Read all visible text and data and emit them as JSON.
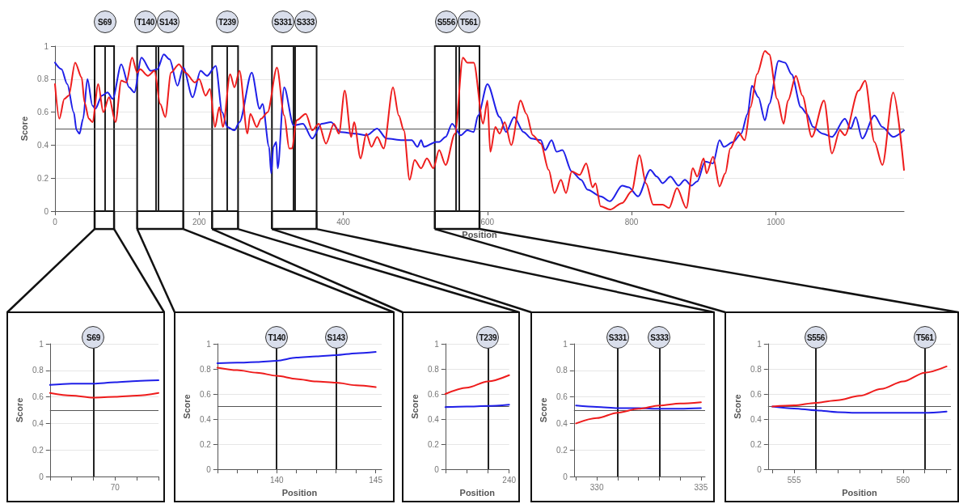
{
  "chart_data": [
    {
      "type": "line",
      "ylabel": "Score",
      "xlabel": "Position",
      "xlim": [
        0,
        1178
      ],
      "xticks": [
        0,
        200,
        400,
        600,
        800,
        1000
      ],
      "ylim": [
        0,
        1
      ],
      "yticks": [
        0,
        0.2,
        0.4,
        0.6,
        0.8,
        1
      ],
      "grid": "y",
      "marker": "none",
      "line_style": "solid",
      "ref_lines": [
        {
          "axis": "y",
          "value": 0.5
        },
        {
          "axis": "x",
          "value": 69,
          "label": "S69"
        },
        {
          "axis": "x",
          "value": 140,
          "label": "T140"
        },
        {
          "axis": "x",
          "value": 143,
          "label": "S143"
        },
        {
          "axis": "x",
          "value": 239,
          "label": "T239"
        },
        {
          "axis": "x",
          "value": 331,
          "label": "S331"
        },
        {
          "axis": "x",
          "value": 333,
          "label": "S333"
        },
        {
          "axis": "x",
          "value": 556,
          "label": "S556"
        },
        {
          "axis": "x",
          "value": 561,
          "label": "T561"
        }
      ],
      "bands": [
        {
          "axis": "x",
          "from": 55,
          "to": 82,
          "color": "#ffffff"
        },
        {
          "axis": "x",
          "from": 114,
          "to": 178,
          "color": "#ffffff"
        },
        {
          "axis": "x",
          "from": 218,
          "to": 254,
          "color": "#ffffff"
        },
        {
          "axis": "x",
          "from": 301,
          "to": 363,
          "color": "#ffffff"
        },
        {
          "axis": "x",
          "from": 527,
          "to": 589,
          "color": "#ffffff"
        }
      ],
      "series": [
        {
          "color": "#1f1fe8",
          "x": [
            0,
            9,
            17,
            26,
            30,
            34,
            39,
            45,
            52,
            56,
            65,
            73,
            80,
            92,
            103,
            110,
            120,
            133,
            142,
            151,
            159,
            170,
            178,
            191,
            202,
            211,
            223,
            232,
            239,
            249,
            256,
            273,
            284,
            288,
            297,
            300,
            303,
            307,
            309,
            318,
            331,
            344,
            357,
            370,
            383,
            396,
            417,
            432,
            447,
            460,
            482,
            495,
            503,
            508,
            512,
            529,
            533,
            542,
            551,
            563,
            572,
            581,
            587,
            600,
            617,
            626,
            637,
            650,
            661,
            674,
            680,
            689,
            696,
            704,
            717,
            730,
            739,
            757,
            770,
            787,
            796,
            809,
            826,
            835,
            843,
            854,
            865,
            874,
            883,
            891,
            902,
            913,
            922,
            928,
            941,
            952,
            961,
            967,
            976,
            985,
            991,
            1004,
            1013,
            1022,
            1035,
            1043,
            1052,
            1065,
            1078,
            1096,
            1104,
            1111,
            1120,
            1137,
            1148,
            1163,
            1178
          ],
          "values": [
            0.9,
            0.86,
            0.77,
            0.6,
            0.49,
            0.47,
            0.56,
            0.8,
            0.64,
            0.62,
            0.7,
            0.72,
            0.68,
            0.89,
            0.75,
            0.72,
            0.93,
            0.85,
            0.86,
            0.95,
            0.92,
            0.76,
            0.87,
            0.69,
            0.85,
            0.82,
            0.88,
            0.6,
            0.51,
            0.49,
            0.54,
            0.84,
            0.62,
            0.65,
            0.39,
            0.23,
            0.39,
            0.42,
            0.26,
            0.75,
            0.52,
            0.53,
            0.44,
            0.53,
            0.54,
            0.48,
            0.47,
            0.46,
            0.5,
            0.44,
            0.43,
            0.43,
            0.39,
            0.43,
            0.39,
            0.42,
            0.42,
            0.45,
            0.53,
            0.46,
            0.49,
            0.48,
            0.58,
            0.77,
            0.57,
            0.48,
            0.57,
            0.48,
            0.44,
            0.43,
            0.37,
            0.43,
            0.36,
            0.37,
            0.24,
            0.19,
            0.13,
            0.09,
            0.06,
            0.155,
            0.145,
            0.09,
            0.25,
            0.21,
            0.17,
            0.21,
            0.155,
            0.19,
            0.155,
            0.18,
            0.3,
            0.29,
            0.43,
            0.39,
            0.42,
            0.47,
            0.59,
            0.76,
            0.69,
            0.55,
            0.65,
            0.91,
            0.9,
            0.83,
            0.63,
            0.59,
            0.51,
            0.47,
            0.45,
            0.56,
            0.5,
            0.57,
            0.44,
            0.58,
            0.51,
            0.45,
            0.49
          ]
        },
        {
          "color": "#ee1c1c",
          "x": [
            0,
            6,
            13,
            19,
            28,
            37,
            41,
            47,
            52,
            60,
            67,
            75,
            84,
            92,
            99,
            107,
            114,
            118,
            129,
            138,
            146,
            153,
            161,
            172,
            181,
            194,
            200,
            209,
            215,
            222,
            228,
            233,
            243,
            249,
            256,
            267,
            271,
            280,
            286,
            295,
            308,
            318,
            325,
            329,
            335,
            348,
            357,
            366,
            376,
            387,
            394,
            402,
            411,
            415,
            424,
            432,
            439,
            447,
            456,
            469,
            477,
            484,
            492,
            499,
            508,
            516,
            525,
            533,
            542,
            555,
            566,
            572,
            581,
            594,
            600,
            604,
            611,
            617,
            624,
            633,
            646,
            654,
            663,
            674,
            685,
            693,
            702,
            709,
            717,
            728,
            737,
            746,
            750,
            757,
            770,
            787,
            800,
            811,
            820,
            830,
            843,
            852,
            863,
            876,
            885,
            891,
            900,
            904,
            913,
            922,
            930,
            937,
            948,
            957,
            965,
            974,
            985,
            991,
            1002,
            1011,
            1017,
            1028,
            1037,
            1050,
            1067,
            1078,
            1089,
            1096,
            1115,
            1124,
            1137,
            1148,
            1163,
            1178
          ],
          "values": [
            0.77,
            0.56,
            0.68,
            0.7,
            0.9,
            0.81,
            0.66,
            0.56,
            0.54,
            0.77,
            0.6,
            0.69,
            0.54,
            0.79,
            0.78,
            0.93,
            0.84,
            0.86,
            0.82,
            0.85,
            0.65,
            0.57,
            0.84,
            0.89,
            0.84,
            0.78,
            0.8,
            0.7,
            0.74,
            0.51,
            0.63,
            0.51,
            0.83,
            0.75,
            0.85,
            0.47,
            0.59,
            0.51,
            0.56,
            0.6,
            0.87,
            0.58,
            0.38,
            0.38,
            0.55,
            0.59,
            0.49,
            0.53,
            0.41,
            0.53,
            0.47,
            0.73,
            0.45,
            0.54,
            0.32,
            0.47,
            0.39,
            0.45,
            0.38,
            0.75,
            0.58,
            0.49,
            0.19,
            0.31,
            0.26,
            0.32,
            0.26,
            0.37,
            0.28,
            0.47,
            0.93,
            0.9,
            0.9,
            0.53,
            0.67,
            0.36,
            0.51,
            0.47,
            0.54,
            0.4,
            0.67,
            0.59,
            0.46,
            0.41,
            0.25,
            0.11,
            0.19,
            0.11,
            0.24,
            0.22,
            0.29,
            0.145,
            0.17,
            0.03,
            0.01,
            0.05,
            0.12,
            0.34,
            0.17,
            0.04,
            0.04,
            0.02,
            0.14,
            0.02,
            0.26,
            0.21,
            0.32,
            0.23,
            0.33,
            0.15,
            0.23,
            0.38,
            0.48,
            0.43,
            0.63,
            0.83,
            0.97,
            0.95,
            0.68,
            0.53,
            0.67,
            0.82,
            0.7,
            0.45,
            0.67,
            0.35,
            0.49,
            0.46,
            0.73,
            0.79,
            0.42,
            0.28,
            0.72,
            0.25
          ]
        }
      ]
    },
    {
      "type": "line",
      "ylabel": "Score",
      "categories": [
        null,
        null,
        null,
        "70",
        null,
        null
      ],
      "ylim": [
        0,
        1
      ],
      "yticks": [
        0,
        0.2,
        0.4,
        0.6,
        0.8,
        1
      ],
      "grid": "y",
      "marker": "none",
      "line_style": "solid",
      "ref_lines": [
        {
          "axis": "y",
          "value": 0.5
        }
      ],
      "annotations": [
        "S69"
      ],
      "series": [
        {
          "color": "#1f1fe8",
          "values": [
            0.69,
            0.7,
            0.7,
            0.71,
            0.72,
            0.725
          ]
        },
        {
          "color": "#ee1c1c",
          "values": [
            0.63,
            0.61,
            0.595,
            0.6,
            0.61,
            0.63
          ]
        }
      ]
    },
    {
      "type": "line",
      "ylabel": "Score",
      "xlabel": "Position",
      "xlim": [
        137,
        145.3
      ],
      "xticks": [
        {
          "value": 137,
          "label": null
        },
        {
          "value": 138,
          "label": null
        },
        {
          "value": 139,
          "label": null
        },
        140,
        {
          "value": 141,
          "label": null
        },
        {
          "value": 142,
          "label": null
        },
        {
          "value": 143,
          "label": null
        },
        {
          "value": 144,
          "label": null
        },
        145
      ],
      "ylim": [
        0,
        1
      ],
      "yticks": [
        0,
        0.2,
        0.4,
        0.6,
        0.8,
        1
      ],
      "grid": "y",
      "marker": "none",
      "line_style": "solid",
      "ref_lines": [
        {
          "axis": "y",
          "value": 0.5
        },
        {
          "axis": "x",
          "value": 140,
          "label": "T140"
        },
        {
          "axis": "x",
          "value": 143,
          "label": "S143"
        }
      ],
      "series": [
        {
          "color": "#1f1fe8",
          "x": [
            137,
            138,
            139,
            140,
            141,
            142,
            143,
            144,
            145
          ],
          "values": [
            0.845,
            0.85,
            0.855,
            0.865,
            0.89,
            0.9,
            0.91,
            0.925,
            0.935
          ]
        },
        {
          "color": "#ee1c1c",
          "x": [
            137,
            138,
            139,
            140,
            141,
            142,
            143,
            144,
            145
          ],
          "values": [
            0.81,
            0.79,
            0.77,
            0.745,
            0.72,
            0.7,
            0.69,
            0.67,
            0.655
          ]
        }
      ]
    },
    {
      "type": "line",
      "ylabel": "Score",
      "xlabel": "Position",
      "categories": [
        null,
        null,
        null,
        "240"
      ],
      "ylim": [
        0,
        1
      ],
      "yticks": [
        0,
        0.2,
        0.4,
        0.6,
        0.8,
        1
      ],
      "grid": "y",
      "marker": "none",
      "line_style": "solid",
      "ref_lines": [
        {
          "axis": "y",
          "value": 0.5
        }
      ],
      "annotations": [
        "T239"
      ],
      "series": [
        {
          "color": "#1f1fe8",
          "values": [
            0.495,
            0.5,
            0.505,
            0.515
          ]
        },
        {
          "color": "#ee1c1c",
          "values": [
            0.6,
            0.65,
            0.7,
            0.75
          ]
        }
      ]
    },
    {
      "type": "line",
      "ylabel": "Score",
      "xlim": [
        328.9,
        335.2
      ],
      "xticks": [
        {
          "value": 329,
          "label": null
        },
        330,
        {
          "value": 331,
          "label": null
        },
        {
          "value": 332,
          "label": null
        },
        {
          "value": 333,
          "label": null
        },
        {
          "value": 334,
          "label": null
        },
        335
      ],
      "ylim": [
        0,
        1
      ],
      "yticks": [
        0,
        0.2,
        0.4,
        0.6,
        0.8,
        1
      ],
      "grid": "y",
      "marker": "none",
      "line_style": "solid",
      "ref_lines": [
        {
          "axis": "y",
          "value": 0.5
        },
        {
          "axis": "x",
          "value": 331,
          "label": "S331"
        },
        {
          "axis": "x",
          "value": 333,
          "label": "S333"
        }
      ],
      "series": [
        {
          "color": "#1f1fe8",
          "x": [
            329,
            330,
            331,
            332,
            333,
            334,
            335
          ],
          "values": [
            0.535,
            0.525,
            0.515,
            0.515,
            0.51,
            0.51,
            0.515
          ]
        },
        {
          "color": "#ee1c1c",
          "x": [
            329,
            330,
            331,
            332,
            333,
            334,
            335
          ],
          "values": [
            0.4,
            0.44,
            0.48,
            0.51,
            0.535,
            0.55,
            0.56
          ]
        }
      ]
    },
    {
      "type": "line",
      "ylabel": "Score",
      "xlabel": "Position",
      "xlim": [
        553.8,
        562.2
      ],
      "xticks": [
        {
          "value": 554,
          "label": null
        },
        555,
        {
          "value": 556,
          "label": null
        },
        {
          "value": 557,
          "label": null
        },
        {
          "value": 558,
          "label": null
        },
        {
          "value": 559,
          "label": null
        },
        560,
        {
          "value": 561,
          "label": null
        },
        {
          "value": 562,
          "label": null
        }
      ],
      "ylim": [
        0,
        1
      ],
      "yticks": [
        0,
        0.2,
        0.4,
        0.6,
        0.8,
        1
      ],
      "grid": "y",
      "marker": "none",
      "line_style": "solid",
      "ref_lines": [
        {
          "axis": "y",
          "value": 0.5
        },
        {
          "axis": "x",
          "value": 556,
          "label": "S556"
        },
        {
          "axis": "x",
          "value": 561,
          "label": "T561"
        }
      ],
      "series": [
        {
          "color": "#1f1fe8",
          "x": [
            554,
            555,
            556,
            557,
            558,
            559,
            560,
            561,
            562
          ],
          "values": [
            0.5,
            0.485,
            0.47,
            0.455,
            0.45,
            0.45,
            0.45,
            0.45,
            0.46
          ]
        },
        {
          "color": "#ee1c1c",
          "x": [
            554,
            555,
            556,
            557,
            558,
            559,
            560,
            561,
            562
          ],
          "values": [
            0.5,
            0.51,
            0.53,
            0.55,
            0.585,
            0.64,
            0.7,
            0.77,
            0.82
          ]
        }
      ]
    }
  ]
}
